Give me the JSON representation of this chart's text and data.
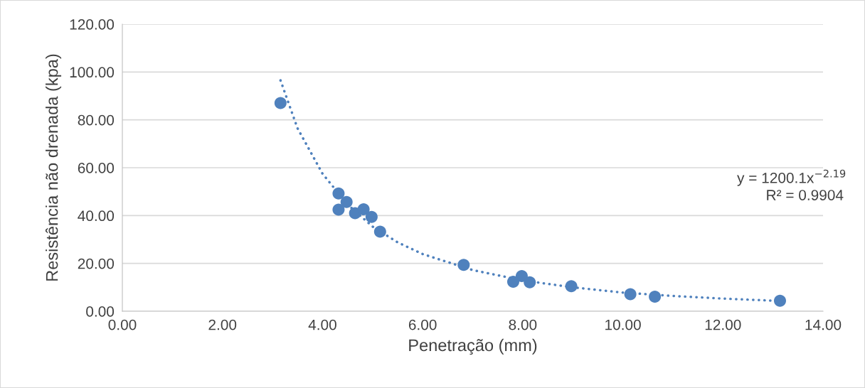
{
  "chart_data": {
    "type": "scatter",
    "xlabel": "Penetração (mm)",
    "ylabel": "Resistência não drenada (kpa)",
    "xlim": [
      0,
      14
    ],
    "xticks": [
      {
        "value": 0,
        "label": "0.00"
      },
      {
        "value": 2,
        "label": "2.00"
      },
      {
        "value": 4,
        "label": "4.00"
      },
      {
        "value": 6,
        "label": "6.00"
      },
      {
        "value": 8,
        "label": "8.00"
      },
      {
        "value": 10,
        "label": "10.00"
      },
      {
        "value": 12,
        "label": "12.00"
      },
      {
        "value": 14,
        "label": "14.00"
      }
    ],
    "ylim": [
      0,
      120
    ],
    "yticks": [
      {
        "value": 0,
        "label": "0.00"
      },
      {
        "value": 20,
        "label": "20.00"
      },
      {
        "value": 40,
        "label": "40.00"
      },
      {
        "value": 60,
        "label": "60.00"
      },
      {
        "value": 80,
        "label": "80.00"
      },
      {
        "value": 100,
        "label": "100.00"
      },
      {
        "value": 120,
        "label": "120.00"
      }
    ],
    "grid": "y",
    "series": [
      {
        "marker": "circle",
        "color": "#4f81bd",
        "x": [
          3.16,
          4.32,
          4.48,
          4.32,
          4.65,
          4.82,
          4.98,
          5.15,
          6.82,
          7.81,
          7.98,
          8.14,
          8.97,
          10.15,
          10.64,
          13.14
        ],
        "values": [
          87.0,
          49.2,
          45.7,
          42.5,
          41.0,
          42.6,
          39.4,
          33.3,
          19.4,
          12.3,
          14.7,
          12.1,
          10.5,
          7.1,
          6.1,
          4.4
        ]
      },
      {
        "type": "line",
        "color": "#4f81bd",
        "line_style": "dotted",
        "x": [
          3.16,
          3.5,
          4,
          4.5,
          5,
          5.5,
          6,
          7,
          8,
          9,
          10,
          11,
          12,
          13.14
        ],
        "values": [
          96.5,
          76.5,
          57.5,
          44.6,
          35.4,
          28.8,
          23.9,
          17.2,
          12.9,
          10.0,
          7.8,
          6.4,
          5.3,
          4.3
        ]
      }
    ],
    "annotations": [
      "y = 1200.1x$^{−2.19}$",
      "R² = 0.9904"
    ]
  }
}
